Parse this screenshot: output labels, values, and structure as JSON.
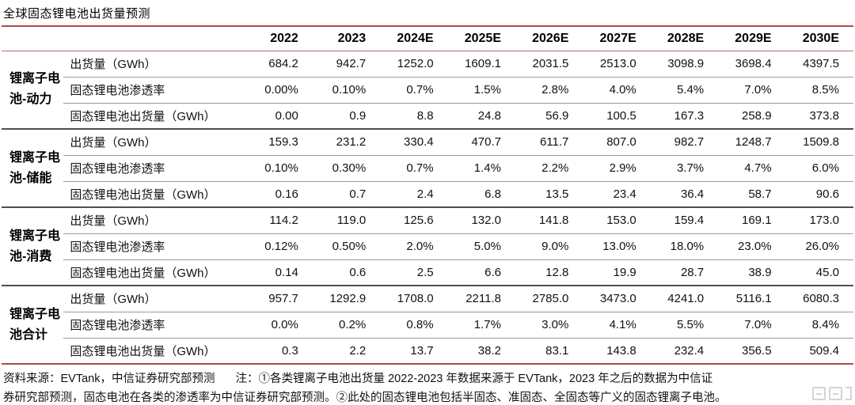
{
  "title": "全球固态锂电池出货量预测",
  "table": {
    "columns": [
      "2022",
      "2023",
      "2024E",
      "2025E",
      "2026E",
      "2027E",
      "2028E",
      "2029E",
      "2030E"
    ],
    "row_labels": [
      "出货量（GWh）",
      "固态锂电池渗透率",
      "固态锂电池出货量（GWh）"
    ],
    "groups": [
      {
        "label": "锂离子电池-动力",
        "rows": [
          {
            "label": "出货量（GWh）",
            "values": [
              "684.2",
              "942.7",
              "1252.0",
              "1609.1",
              "2031.5",
              "2513.0",
              "3098.9",
              "3698.4",
              "4397.5"
            ]
          },
          {
            "label": "固态锂电池渗透率",
            "values": [
              "0.00%",
              "0.10%",
              "0.7%",
              "1.5%",
              "2.8%",
              "4.0%",
              "5.4%",
              "7.0%",
              "8.5%"
            ]
          },
          {
            "label": "固态锂电池出货量（GWh）",
            "values": [
              "0.00",
              "0.9",
              "8.8",
              "24.8",
              "56.9",
              "100.5",
              "167.3",
              "258.9",
              "373.8"
            ]
          }
        ]
      },
      {
        "label": "锂离子电池-储能",
        "rows": [
          {
            "label": "出货量（GWh）",
            "values": [
              "159.3",
              "231.2",
              "330.4",
              "470.7",
              "611.7",
              "807.0",
              "982.7",
              "1248.7",
              "1509.8"
            ]
          },
          {
            "label": "固态锂电池渗透率",
            "values": [
              "0.10%",
              "0.30%",
              "0.7%",
              "1.4%",
              "2.2%",
              "2.9%",
              "3.7%",
              "4.7%",
              "6.0%"
            ]
          },
          {
            "label": "固态锂电池出货量（GWh）",
            "values": [
              "0.16",
              "0.7",
              "2.4",
              "6.8",
              "13.5",
              "23.4",
              "36.4",
              "58.7",
              "90.6"
            ]
          }
        ]
      },
      {
        "label": "锂离子电池-消费",
        "rows": [
          {
            "label": "出货量（GWh）",
            "values": [
              "114.2",
              "119.0",
              "125.6",
              "132.0",
              "141.8",
              "153.0",
              "159.4",
              "169.1",
              "173.0"
            ]
          },
          {
            "label": "固态锂电池渗透率",
            "values": [
              "0.12%",
              "0.50%",
              "2.0%",
              "5.0%",
              "9.0%",
              "13.0%",
              "18.0%",
              "23.0%",
              "26.0%"
            ]
          },
          {
            "label": "固态锂电池出货量（GWh）",
            "values": [
              "0.14",
              "0.6",
              "2.5",
              "6.6",
              "12.8",
              "19.9",
              "28.7",
              "38.9",
              "45.0"
            ]
          }
        ]
      },
      {
        "label": "锂离子电池合计",
        "rows": [
          {
            "label": "出货量（GWh）",
            "values": [
              "957.7",
              "1292.9",
              "1708.0",
              "2211.8",
              "2785.0",
              "3473.0",
              "4241.0",
              "5116.1",
              "6080.3"
            ]
          },
          {
            "label": "固态锂电池渗透率",
            "values": [
              "0.0%",
              "0.2%",
              "0.8%",
              "1.7%",
              "3.0%",
              "4.1%",
              "5.5%",
              "7.0%",
              "8.4%"
            ]
          },
          {
            "label": "固态锂电池出货量（GWh）",
            "values": [
              "0.3",
              "2.2",
              "13.7",
              "38.2",
              "83.1",
              "143.8",
              "232.4",
              "356.5",
              "509.4"
            ]
          }
        ]
      }
    ]
  },
  "footer": {
    "source_label": "资料来源：EVTank，中信证券研究部预测",
    "note_line1": "注：①各类锂离子电池出货量 2022-2023 年数据来源于 EVTank，2023 年之后的数据为中信证",
    "note_line2": "券研究部预测，固态电池在各类的渗透率为中信证券研究部预测。②此处的固态锂电池包括半固态、准固态、全固态等广义的固态锂离子电池。"
  }
}
